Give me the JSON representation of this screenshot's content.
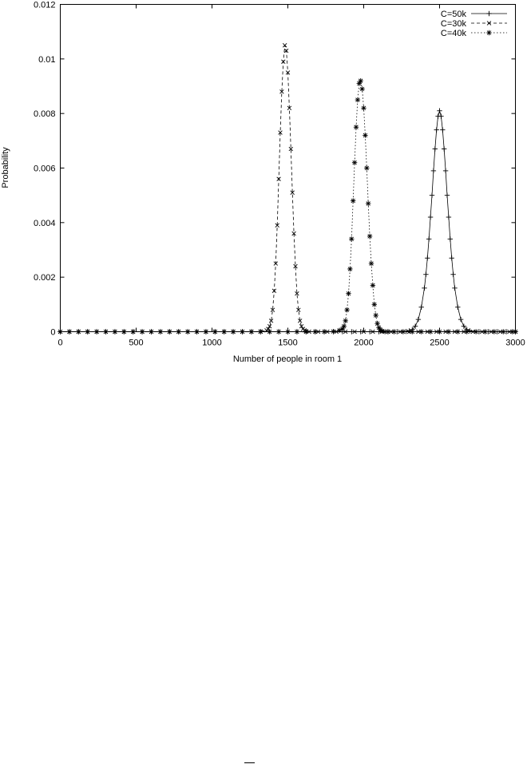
{
  "chart_data": {
    "type": "line",
    "title": "",
    "xlabel": "Number of people in room 1",
    "ylabel": "Probability",
    "xlim": [
      0,
      3000
    ],
    "ylim": [
      0,
      0.012
    ],
    "x_ticks": [
      "0",
      "500",
      "1000",
      "1500",
      "2000",
      "2500",
      "3000"
    ],
    "y_ticks": [
      "0",
      "0.002",
      "0.004",
      "0.006",
      "0.008",
      "0.01",
      "0.012"
    ],
    "legend_position": "top-right",
    "grid": false,
    "series": [
      {
        "name": "C=50k",
        "style": "solid",
        "marker": "plus",
        "x": [
          0,
          60,
          120,
          180,
          240,
          300,
          360,
          420,
          480,
          540,
          600,
          660,
          720,
          780,
          840,
          900,
          960,
          1020,
          1080,
          1140,
          1200,
          1260,
          1320,
          1380,
          1440,
          1500,
          1560,
          1620,
          1680,
          1740,
          1800,
          1860,
          1920,
          1980,
          2040,
          2100,
          2160,
          2220,
          2280,
          2300,
          2320,
          2340,
          2360,
          2380,
          2400,
          2410,
          2420,
          2430,
          2440,
          2450,
          2460,
          2470,
          2480,
          2490,
          2500,
          2510,
          2520,
          2530,
          2540,
          2550,
          2560,
          2570,
          2580,
          2590,
          2600,
          2620,
          2640,
          2660,
          2680,
          2700,
          2760,
          2820,
          2880,
          2940,
          3000
        ],
        "y": [
          0,
          0,
          0,
          0,
          0,
          0,
          0,
          0,
          0,
          0,
          0,
          0,
          0,
          0,
          0,
          0,
          0,
          0,
          0,
          0,
          0,
          0,
          0,
          0,
          0,
          0,
          0,
          0,
          0,
          0,
          0,
          0,
          0,
          0,
          0,
          0,
          0,
          0,
          1e-05,
          3e-05,
          8e-05,
          0.0002,
          0.00045,
          0.0009,
          0.0016,
          0.0021,
          0.0027,
          0.0034,
          0.0042,
          0.005,
          0.0059,
          0.0067,
          0.0074,
          0.0079,
          0.0081,
          0.0079,
          0.0074,
          0.0067,
          0.0059,
          0.005,
          0.0042,
          0.0034,
          0.0027,
          0.0021,
          0.0016,
          0.0009,
          0.00045,
          0.0002,
          8e-05,
          3e-05,
          0,
          0,
          0,
          0,
          0
        ]
      },
      {
        "name": "C=30k",
        "style": "dashed",
        "marker": "x",
        "x": [
          0,
          60,
          120,
          180,
          240,
          300,
          360,
          420,
          480,
          540,
          600,
          660,
          720,
          780,
          840,
          900,
          960,
          1020,
          1080,
          1140,
          1200,
          1260,
          1320,
          1360,
          1370,
          1380,
          1390,
          1400,
          1410,
          1420,
          1430,
          1440,
          1450,
          1460,
          1470,
          1480,
          1490,
          1500,
          1510,
          1520,
          1530,
          1540,
          1550,
          1560,
          1570,
          1580,
          1590,
          1600,
          1610,
          1620,
          1640,
          1700,
          1760,
          1820,
          1880,
          1940,
          2000,
          2060,
          2120,
          2180,
          2240,
          2300,
          2360,
          2420,
          2480,
          2540,
          2600,
          2660,
          2720,
          2780,
          2840,
          2900,
          2960,
          3000
        ],
        "y": [
          0,
          0,
          0,
          0,
          0,
          0,
          0,
          0,
          0,
          0,
          0,
          0,
          0,
          0,
          0,
          0,
          0,
          0,
          0,
          0,
          0,
          0,
          1e-05,
          5e-05,
          0.0001,
          0.0002,
          0.0004,
          0.0008,
          0.0015,
          0.0025,
          0.0039,
          0.0056,
          0.0073,
          0.0088,
          0.0099,
          0.0105,
          0.0103,
          0.0095,
          0.0082,
          0.0067,
          0.0051,
          0.0036,
          0.0024,
          0.0014,
          0.0008,
          0.0004,
          0.0002,
          0.0001,
          5e-05,
          2e-05,
          0,
          0,
          0,
          0,
          0,
          0,
          0,
          0,
          0,
          0,
          0,
          0,
          0,
          0,
          0,
          0,
          0,
          0,
          0,
          0,
          0,
          0,
          0,
          0
        ]
      },
      {
        "name": "C=40k",
        "style": "dotted",
        "marker": "star",
        "x": [
          0,
          60,
          120,
          180,
          240,
          300,
          360,
          420,
          480,
          540,
          600,
          660,
          720,
          780,
          840,
          900,
          960,
          1020,
          1080,
          1140,
          1200,
          1260,
          1320,
          1380,
          1440,
          1500,
          1560,
          1620,
          1680,
          1740,
          1800,
          1840,
          1860,
          1870,
          1880,
          1890,
          1900,
          1910,
          1920,
          1930,
          1940,
          1950,
          1960,
          1970,
          1980,
          1990,
          2000,
          2010,
          2020,
          2030,
          2040,
          2050,
          2060,
          2070,
          2080,
          2090,
          2100,
          2110,
          2120,
          2140,
          2160,
          2200,
          2260,
          2320,
          2380,
          2440,
          2500,
          2560,
          2620,
          2680,
          2740,
          2800,
          2860,
          2920,
          2980,
          3000
        ],
        "y": [
          0,
          0,
          0,
          0,
          0,
          0,
          0,
          0,
          0,
          0,
          0,
          0,
          0,
          0,
          0,
          0,
          0,
          0,
          0,
          0,
          0,
          0,
          0,
          0,
          0,
          0,
          0,
          0,
          0,
          0,
          1e-05,
          5e-05,
          0.0001,
          0.0002,
          0.0004,
          0.0008,
          0.0014,
          0.0023,
          0.0034,
          0.0048,
          0.0062,
          0.0075,
          0.0085,
          0.0091,
          0.0092,
          0.0089,
          0.0082,
          0.0072,
          0.006,
          0.0047,
          0.0035,
          0.0025,
          0.0017,
          0.001,
          0.0006,
          0.0003,
          0.00015,
          7e-05,
          3e-05,
          0,
          0,
          0,
          0,
          0,
          0,
          0,
          0,
          0,
          0,
          0,
          0,
          0,
          0,
          0,
          0,
          0
        ]
      }
    ]
  }
}
